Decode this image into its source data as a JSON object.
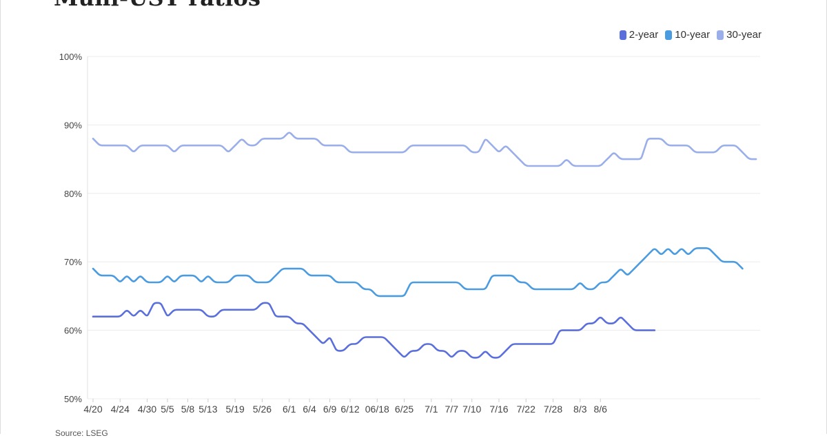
{
  "page": {
    "title": "Muni-UST ratios",
    "source": "Source: LSEG"
  },
  "chart_data": {
    "type": "line",
    "title": "Muni-UST ratios",
    "xlabel": "",
    "ylabel": "",
    "ylim": [
      50,
      100
    ],
    "y_ticks": [
      "50%",
      "60%",
      "70%",
      "80%",
      "90%",
      "100%"
    ],
    "y_tick_values": [
      50,
      60,
      70,
      80,
      90,
      100
    ],
    "grid": true,
    "legend_position": "top-right",
    "x_tick_labels": [
      "4/20",
      "4/24",
      "4/30",
      "5/5",
      "5/8",
      "5/13",
      "5/19",
      "5/26",
      "6/1",
      "6/4",
      "6/9",
      "6/12",
      "06/18",
      "6/25",
      "7/1",
      "7/7",
      "7/10",
      "7/16",
      "7/22",
      "7/28",
      "8/3",
      "8/6"
    ],
    "x_tick_indices": [
      0,
      4,
      8,
      11,
      14,
      17,
      21,
      25,
      29,
      32,
      35,
      38,
      42,
      46,
      50,
      53,
      56,
      60,
      64,
      68,
      72,
      75
    ],
    "series": [
      {
        "name": "2-year",
        "color": "#5b6fdc",
        "values": [
          62,
          62,
          62,
          62,
          62,
          63,
          62,
          63,
          62,
          64,
          64,
          62,
          63,
          63,
          63,
          63,
          63,
          62,
          62,
          63,
          63,
          63,
          63,
          63,
          63,
          64,
          64,
          62,
          62,
          62,
          61,
          61,
          60,
          59,
          58,
          59,
          57,
          57,
          58,
          58,
          59,
          59,
          59,
          59,
          58,
          57,
          56,
          57,
          57,
          58,
          58,
          57,
          57,
          56,
          57,
          57,
          56,
          56,
          57,
          56,
          56,
          57,
          58,
          58,
          58,
          58,
          58,
          58,
          58,
          60,
          60,
          60,
          60,
          61,
          61,
          62,
          61,
          61,
          62,
          61,
          60,
          60,
          60,
          60
        ]
      },
      {
        "name": "10-year",
        "color": "#4a9be0",
        "values": [
          69,
          68,
          68,
          68,
          67,
          68,
          67,
          68,
          67,
          67,
          67,
          68,
          67,
          68,
          68,
          68,
          67,
          68,
          67,
          67,
          67,
          68,
          68,
          68,
          67,
          67,
          67,
          68,
          69,
          69,
          69,
          69,
          68,
          68,
          68,
          68,
          67,
          67,
          67,
          67,
          66,
          66,
          65,
          65,
          65,
          65,
          65,
          67,
          67,
          67,
          67,
          67,
          67,
          67,
          67,
          66,
          66,
          66,
          66,
          68,
          68,
          68,
          68,
          67,
          67,
          66,
          66,
          66,
          66,
          66,
          66,
          66,
          67,
          66,
          66,
          67,
          67,
          68,
          69,
          68,
          69,
          70,
          71,
          72,
          71,
          72,
          71,
          72,
          71,
          72,
          72,
          72,
          71,
          70,
          70,
          70,
          69
        ]
      },
      {
        "name": "30-year",
        "color": "#9aaeea",
        "values": [
          88,
          87,
          87,
          87,
          87,
          87,
          86,
          87,
          87,
          87,
          87,
          87,
          86,
          87,
          87,
          87,
          87,
          87,
          87,
          87,
          86,
          87,
          88,
          87,
          87,
          88,
          88,
          88,
          88,
          89,
          88,
          88,
          88,
          88,
          87,
          87,
          87,
          87,
          86,
          86,
          86,
          86,
          86,
          86,
          86,
          86,
          86,
          87,
          87,
          87,
          87,
          87,
          87,
          87,
          87,
          87,
          86,
          86,
          88,
          87,
          86,
          87,
          86,
          85,
          84,
          84,
          84,
          84,
          84,
          84,
          85,
          84,
          84,
          84,
          84,
          84,
          85,
          86,
          85,
          85,
          85,
          85,
          88,
          88,
          88,
          87,
          87,
          87,
          87,
          86,
          86,
          86,
          86,
          87,
          87,
          87,
          86,
          85,
          85
        ]
      }
    ]
  }
}
